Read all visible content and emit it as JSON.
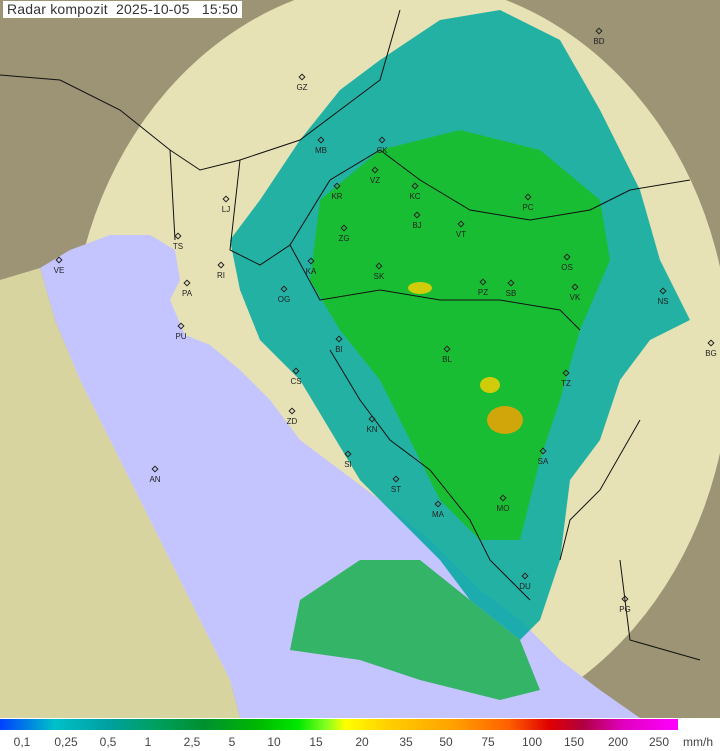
{
  "title": "Radar kompozit  2025-10-05   15:50",
  "legend": {
    "unit": "mm/h",
    "ticks": [
      "0,1",
      "0,25",
      "0,5",
      "1",
      "2,5",
      "5",
      "10",
      "15",
      "20",
      "35",
      "50",
      "75",
      "100",
      "150",
      "200",
      "250"
    ]
  },
  "colors": {
    "sea": "#c4c4ff",
    "land": "#e8e4b8",
    "outside": "#a09a78",
    "radar_low": "#00a0a0",
    "radar_mid": "#00c000",
    "radar_high": "#ffa000"
  },
  "cities": [
    {
      "code": "GZ"
    },
    {
      "code": "BD"
    },
    {
      "code": "MB"
    },
    {
      "code": "CK"
    },
    {
      "code": "VZ"
    },
    {
      "code": "KR"
    },
    {
      "code": "KC"
    },
    {
      "code": "PC"
    },
    {
      "code": "LJ"
    },
    {
      "code": "ZG"
    },
    {
      "code": "BJ"
    },
    {
      "code": "VT"
    },
    {
      "code": "TS"
    },
    {
      "code": "RI"
    },
    {
      "code": "KA"
    },
    {
      "code": "SK"
    },
    {
      "code": "OS"
    },
    {
      "code": "VE"
    },
    {
      "code": "PA"
    },
    {
      "code": "OG"
    },
    {
      "code": "PZ"
    },
    {
      "code": "SB"
    },
    {
      "code": "VK"
    },
    {
      "code": "NS"
    },
    {
      "code": "PU"
    },
    {
      "code": "BI"
    },
    {
      "code": "BL"
    },
    {
      "code": "BG"
    },
    {
      "code": "CS"
    },
    {
      "code": "TZ"
    },
    {
      "code": "ZD"
    },
    {
      "code": "KN"
    },
    {
      "code": "SA"
    },
    {
      "code": "AN"
    },
    {
      "code": "SI"
    },
    {
      "code": "ST"
    },
    {
      "code": "MA"
    },
    {
      "code": "MO"
    },
    {
      "code": "DU"
    },
    {
      "code": "PG"
    }
  ]
}
